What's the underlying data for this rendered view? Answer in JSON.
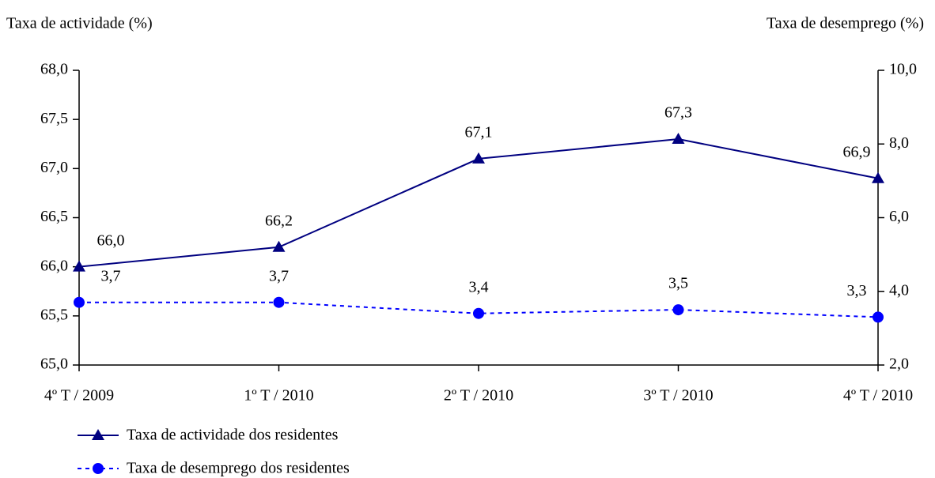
{
  "chart_data": {
    "type": "line",
    "ylabel": "Taxa de actividade (%)",
    "y2label": "Taxa de desemprego (%)",
    "categories": [
      "4º T / 2009",
      "1º T / 2010",
      "2º T / 2010",
      "3º T / 2010",
      "4º T / 2010"
    ],
    "series": [
      {
        "name": "Taxa de actividade dos residentes",
        "color": "#000080",
        "marker": "triangle",
        "line_style": "solid",
        "values": [
          66.0,
          66.2,
          67.1,
          67.3,
          66.9
        ],
        "value_labels": [
          "66,0",
          "66,2",
          "67,1",
          "67,3",
          "66,9"
        ]
      },
      {
        "name": "Taxa de desemprego dos residentes",
        "color": "#0000ff",
        "marker": "circle",
        "line_style": "dashed",
        "axis": "y2",
        "values": [
          3.7,
          3.7,
          3.4,
          3.5,
          3.3
        ],
        "value_labels": [
          "3,7",
          "3,7",
          "3,4",
          "3,5",
          "3,3"
        ]
      }
    ],
    "ylim": [
      65,
      68
    ],
    "yticks": [
      {
        "value": 65,
        "label": "65,0"
      },
      {
        "value": 65.5,
        "label": "65,5"
      },
      {
        "value": 66,
        "label": "66,0"
      },
      {
        "value": 66.5,
        "label": "66,5"
      },
      {
        "value": 67,
        "label": "67,0"
      },
      {
        "value": 67.5,
        "label": "67,5"
      },
      {
        "value": 68,
        "label": "68,0"
      }
    ],
    "y2lim": [
      2,
      10
    ],
    "y2ticks": [
      {
        "value": 2,
        "label": "2,0"
      },
      {
        "value": 4,
        "label": "4,0"
      },
      {
        "value": 6,
        "label": "6,0"
      },
      {
        "value": 8,
        "label": "8,0"
      },
      {
        "value": 10,
        "label": "10,0"
      }
    ],
    "grid": false,
    "legend": "bottom-left"
  }
}
